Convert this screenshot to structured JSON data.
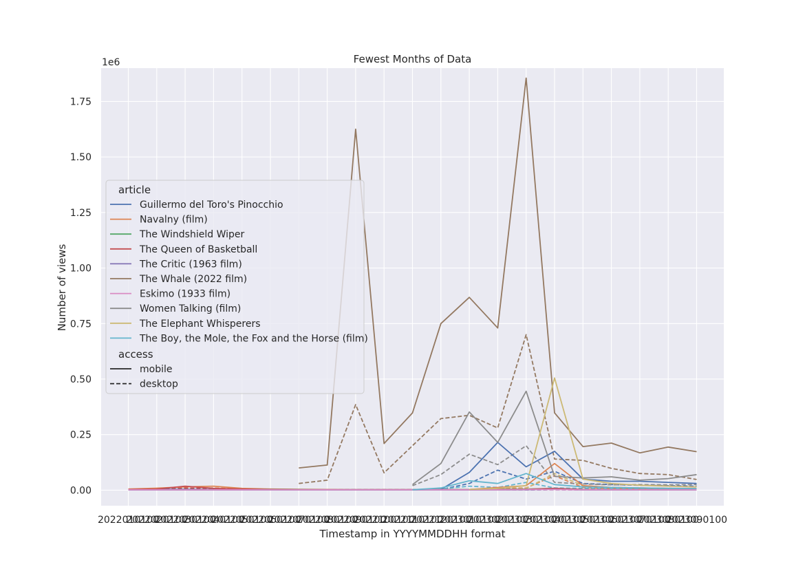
{
  "chart_data": {
    "type": "line",
    "title": "Fewest Months of Data",
    "xlabel": "Timestamp in YYYYMMDDHH format",
    "ylabel": "Number of views",
    "y_offset_label": "1e6",
    "y_scale": 1000000,
    "ylim": [
      -70000,
      1900000
    ],
    "y_ticks": [
      0,
      250000,
      500000,
      750000,
      1000000,
      1250000,
      1500000,
      1750000
    ],
    "y_tick_labels": [
      "0.00",
      "0.25",
      "0.50",
      "0.75",
      "1.00",
      "1.25",
      "1.50",
      "1.75"
    ],
    "categories": [
      "2022010100",
      "2022020100",
      "2022030100",
      "2022040100",
      "2022050100",
      "2022060100",
      "2022070100",
      "2022080100",
      "2022090100",
      "2022100100",
      "2022110100",
      "2022120100",
      "2023010100",
      "2023020100",
      "2023030100",
      "2023040100",
      "2023050100",
      "2023060100",
      "2023070100",
      "2023080100",
      "2023090100"
    ],
    "x_tick_labels": [
      "2022010100",
      "2022020100",
      "2022030100",
      "2022040100",
      "2022050100",
      "2022060100",
      "2022070100",
      "2022080100",
      "2022090100",
      "2022100100",
      "2022110100",
      "2022120100",
      "2023010100",
      "2023020100",
      "2023030100",
      "2023040100",
      "2023050100",
      "2023060100",
      "2023070100",
      "2023080100",
      "2023090100"
    ],
    "grid": true,
    "legend": {
      "placement": "center-left",
      "article_title": "article",
      "access_title": "access",
      "access_items": [
        {
          "label": "mobile",
          "dash": "solid"
        },
        {
          "label": "desktop",
          "dash": "dashed"
        }
      ]
    },
    "series": [
      {
        "name": "Guillermo del Toro's Pinocchio",
        "color": "#4c72b0",
        "mobile": [
          2000,
          3000,
          4000,
          3000,
          3000,
          3000,
          2000,
          2000,
          2000,
          2000,
          2000,
          3000,
          80000,
          215000,
          105000,
          175000,
          50000,
          40000,
          40000,
          35000,
          30000
        ],
        "desktop": [
          2000,
          2000,
          3000,
          2000,
          2000,
          2000,
          2000,
          2000,
          2000,
          2000,
          2000,
          3000,
          30000,
          90000,
          50000,
          85000,
          30000,
          25000,
          22000,
          20000,
          18000
        ]
      },
      {
        "name": "Navalny (film)",
        "color": "#dd8452",
        "mobile": [
          5000,
          9000,
          15000,
          18000,
          8000,
          5000,
          4000,
          3000,
          2000,
          2000,
          2000,
          2000,
          3000,
          12000,
          20000,
          120000,
          20000,
          12000,
          10000,
          8000,
          8000
        ],
        "desktop": [
          4000,
          6000,
          8000,
          10000,
          6000,
          4000,
          3000,
          2000,
          2000,
          2000,
          2000,
          2000,
          3000,
          8000,
          10000,
          65000,
          12000,
          8000,
          6000,
          5000,
          5000
        ]
      },
      {
        "name": "The Windshield Wiper",
        "color": "#55a868",
        "mobile": [
          2000,
          2000,
          2000,
          2000,
          4000,
          4000,
          3000,
          2000,
          2000,
          2000,
          2000,
          2000,
          3000,
          4000,
          5000,
          8000,
          3000,
          2000,
          2000,
          2000,
          2000
        ],
        "desktop": [
          2000,
          2000,
          2000,
          2000,
          3000,
          3000,
          2000,
          2000,
          2000,
          2000,
          2000,
          2000,
          2000,
          3000,
          3000,
          5000,
          2000,
          2000,
          2000,
          2000,
          2000
        ]
      },
      {
        "name": "The Queen of Basketball",
        "color": "#c44e52",
        "mobile": [
          3000,
          5000,
          18000,
          8000,
          5000,
          3000,
          2000,
          2000,
          2000,
          2000,
          2000,
          2000,
          2000,
          3000,
          4000,
          8000,
          3000,
          2000,
          2000,
          2000,
          2000
        ],
        "desktop": [
          2000,
          3000,
          10000,
          5000,
          3000,
          2000,
          2000,
          2000,
          2000,
          2000,
          2000,
          2000,
          2000,
          2000,
          3000,
          5000,
          2000,
          2000,
          2000,
          2000,
          2000
        ]
      },
      {
        "name": "The Critic (1963 film)",
        "color": "#8172b3",
        "mobile": [
          1000,
          1000,
          1000,
          1000,
          1000,
          1000,
          1000,
          1000,
          1000,
          1000,
          1000,
          1000,
          1000,
          1000,
          2000,
          4000,
          1000,
          1000,
          1000,
          1000,
          1000
        ],
        "desktop": [
          1000,
          1000,
          1000,
          1000,
          1000,
          1000,
          1000,
          1000,
          1000,
          1000,
          1000,
          1000,
          1000,
          1000,
          1000,
          2000,
          1000,
          1000,
          1000,
          1000,
          1000
        ]
      },
      {
        "name": "The Whale (2022 film)",
        "color": "#937860",
        "mobile": [
          null,
          null,
          null,
          null,
          null,
          null,
          100000,
          113000,
          1625000,
          210000,
          348000,
          750000,
          868000,
          730000,
          1855000,
          348000,
          196000,
          212000,
          168000,
          194000,
          173000
        ],
        "desktop": [
          null,
          null,
          null,
          null,
          null,
          null,
          30000,
          45000,
          385000,
          78000,
          200000,
          322000,
          337000,
          280000,
          700000,
          140000,
          134000,
          98000,
          75000,
          70000,
          48000
        ]
      },
      {
        "name": "Eskimo (1933 film)",
        "color": "#da8bc3",
        "mobile": [
          2000,
          2000,
          2000,
          2000,
          2000,
          2000,
          2000,
          2000,
          2000,
          2000,
          2000,
          2000,
          2000,
          2000,
          3000,
          3000,
          2000,
          2000,
          2000,
          2000,
          2000
        ],
        "desktop": [
          1000,
          1000,
          1000,
          1000,
          1000,
          1000,
          1000,
          1000,
          1000,
          1000,
          1000,
          1000,
          1000,
          1000,
          2000,
          2000,
          1000,
          1000,
          1000,
          1000,
          1000
        ]
      },
      {
        "name": "Women Talking (film)",
        "color": "#8c8c8c",
        "mobile": [
          null,
          null,
          null,
          null,
          null,
          null,
          null,
          null,
          null,
          null,
          25000,
          120000,
          352000,
          215000,
          445000,
          62000,
          55000,
          60000,
          45000,
          52000,
          70000
        ],
        "desktop": [
          null,
          null,
          null,
          null,
          null,
          null,
          null,
          null,
          null,
          null,
          20000,
          70000,
          162000,
          115000,
          200000,
          35000,
          28000,
          24000,
          25000,
          24000,
          25000
        ]
      },
      {
        "name": "The Elephant Whisperers",
        "color": "#ccb974",
        "mobile": [
          null,
          null,
          null,
          null,
          null,
          null,
          null,
          null,
          null,
          null,
          null,
          null,
          3000,
          8000,
          20000,
          505000,
          50000,
          30000,
          22000,
          18000,
          15000
        ],
        "desktop": [
          null,
          null,
          null,
          null,
          null,
          null,
          null,
          null,
          null,
          null,
          null,
          null,
          2000,
          4000,
          8000,
          75000,
          20000,
          12000,
          10000,
          8000,
          7000
        ]
      },
      {
        "name": "The Boy, the Mole, the Fox and the Horse (film)",
        "color": "#64b5cd",
        "mobile": [
          null,
          null,
          null,
          null,
          null,
          null,
          null,
          null,
          null,
          null,
          2000,
          10000,
          42000,
          30000,
          75000,
          25000,
          15000,
          12000,
          10000,
          8000,
          7000
        ],
        "desktop": [
          null,
          null,
          null,
          null,
          null,
          null,
          null,
          null,
          null,
          null,
          1000,
          5000,
          18000,
          12000,
          35000,
          10000,
          8000,
          6000,
          5000,
          4000,
          3000
        ]
      }
    ]
  }
}
